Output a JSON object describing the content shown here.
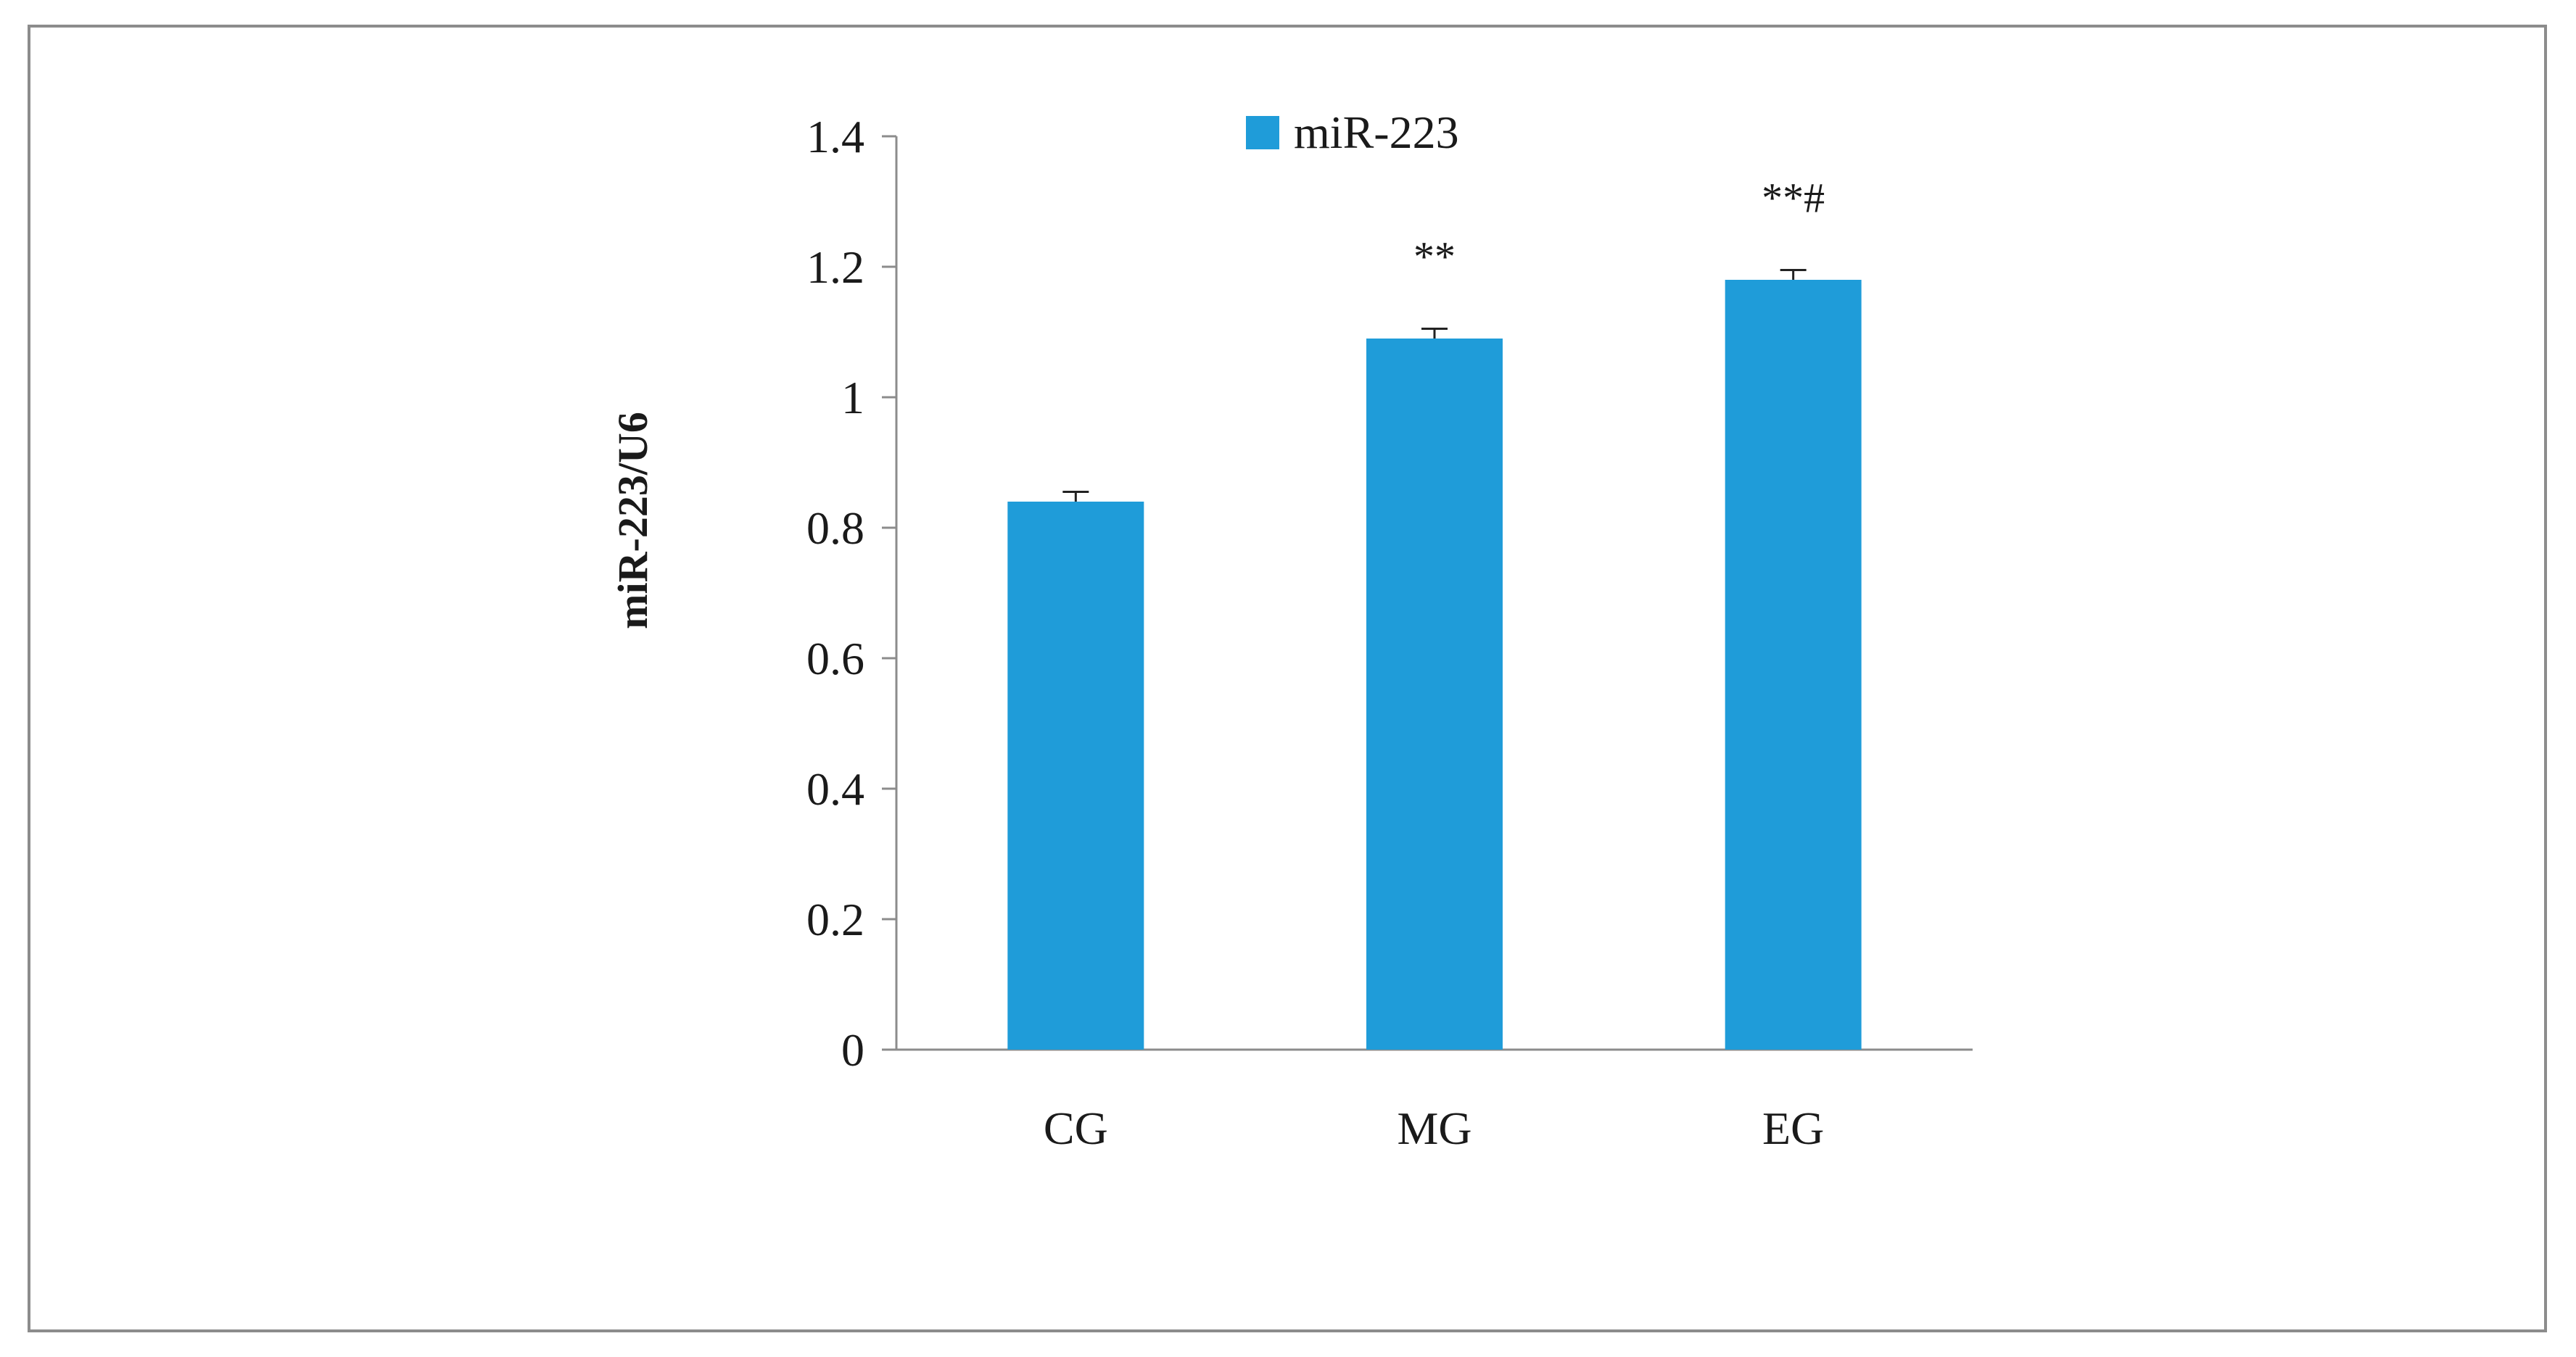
{
  "chart_data": {
    "type": "bar",
    "categories": [
      "CG",
      "MG",
      "EG"
    ],
    "series": [
      {
        "name": "miR-223",
        "values": [
          0.84,
          1.09,
          1.18
        ],
        "errors": [
          0.015,
          0.015,
          0.015
        ],
        "color": "#1f9cd9"
      }
    ],
    "annotations": [
      "",
      "**",
      "**#"
    ],
    "ylabel": "miR-223/U6",
    "xlabel": "",
    "ylim": [
      0,
      1.4
    ],
    "yticks": [
      0,
      0.2,
      0.4,
      0.6,
      0.8,
      1,
      1.2,
      1.4
    ],
    "ytick_labels": [
      "0",
      "0.2",
      "0.4",
      "0.6",
      "0.8",
      "1",
      "1.2",
      "1.4"
    ],
    "grid": false,
    "legend_position": "top"
  },
  "colors": {
    "bar": "#1f9cd9",
    "axis": "#8c8c8c",
    "frame": "#8c8c8c",
    "text": "#1a1a1a"
  }
}
